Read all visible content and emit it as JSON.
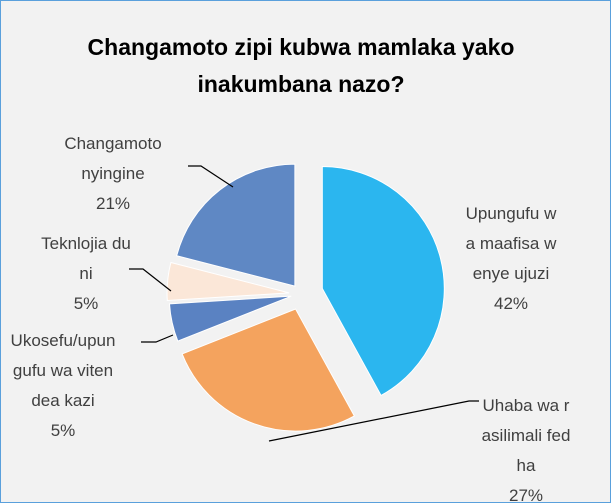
{
  "chart_data": {
    "type": "pie",
    "title": "Changamoto zipi kubwa mamlaka yako inakumbana nazo?",
    "categories": [
      "Upungufu wa maafisa wenye ujuzi",
      "Uhaba wa rasilimali fedha",
      "Ukosefu/upungufu wa vitendea kazi",
      "Teknlojia duni",
      "Changamoto nyingine"
    ],
    "values": [
      42,
      27,
      5,
      5,
      21
    ],
    "value_labels": [
      "42%",
      "27%",
      "5%",
      "5%",
      "21%"
    ],
    "colors": [
      "#2bb6ef",
      "#f4a35e",
      "#5a82c2",
      "#fbe7d8",
      "#5f88c4"
    ]
  }
}
